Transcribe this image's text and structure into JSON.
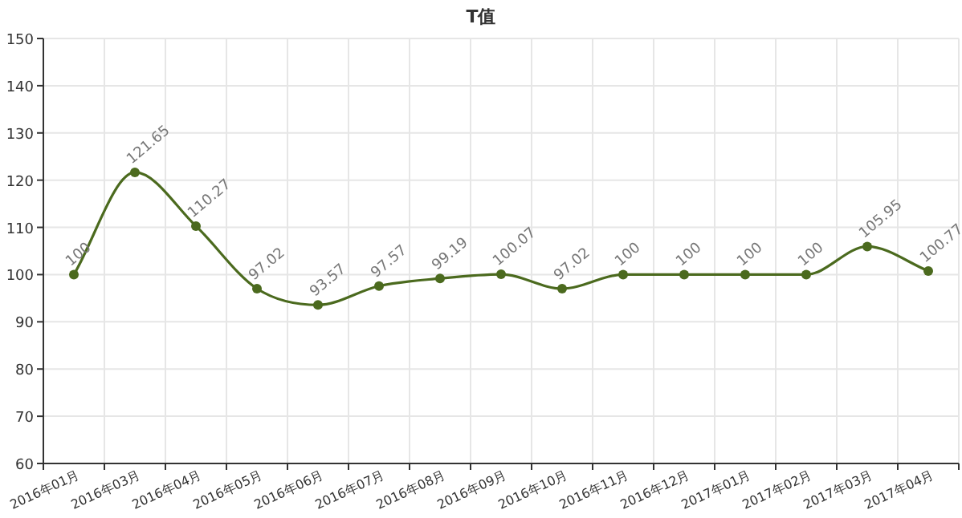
{
  "chart_data": {
    "type": "line",
    "title": "T值",
    "categories": [
      "2016年01月",
      "2016年03月",
      "2016年04月",
      "2016年05月",
      "2016年06月",
      "2016年07月",
      "2016年08月",
      "2016年09月",
      "2016年10月",
      "2016年11月",
      "2016年12月",
      "2017年01月",
      "2017年02月",
      "2017年03月",
      "2017年04月"
    ],
    "series": [
      {
        "color": "#4b6a1e",
        "values": [
          100,
          121.65,
          110.27,
          97.02,
          93.57,
          97.57,
          99.19,
          100.07,
          97.02,
          100,
          100,
          100,
          100,
          105.95,
          100.77
        ]
      }
    ],
    "ylim": [
      60,
      150
    ],
    "yticks": [
      60,
      70,
      80,
      90,
      100,
      110,
      120,
      130,
      140,
      150
    ],
    "grid": true,
    "marker": "circle",
    "line_style": "solid",
    "data_labels": true
  }
}
